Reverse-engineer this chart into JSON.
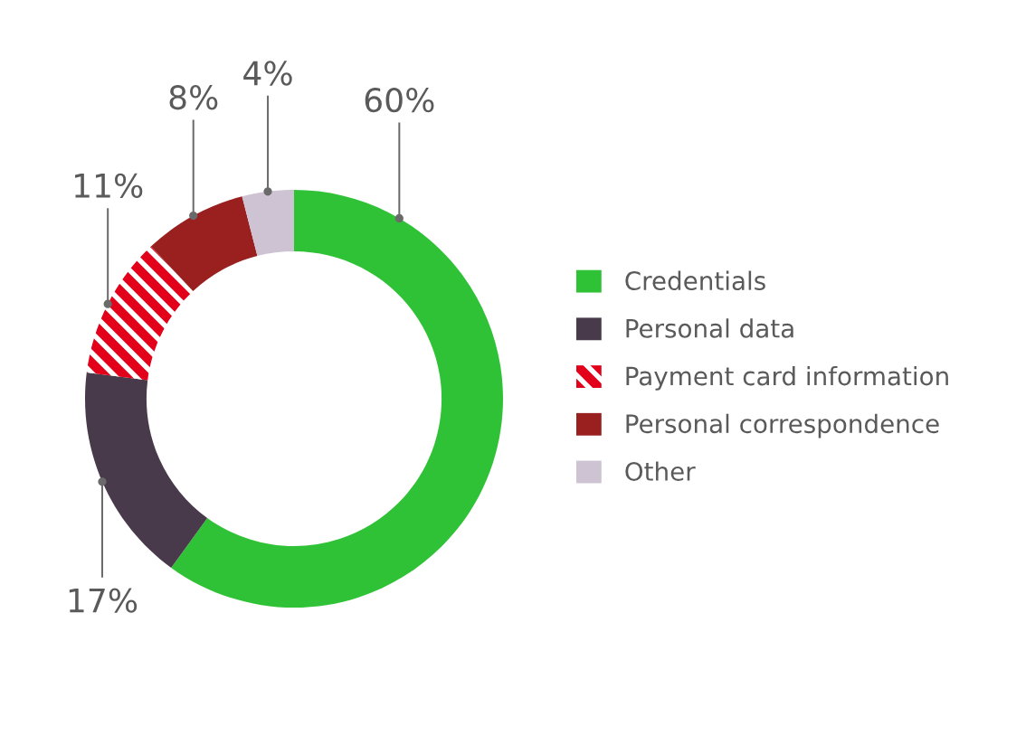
{
  "chart_data": {
    "type": "donut",
    "categories": [
      "Credentials",
      "Personal data",
      "Payment card information",
      "Personal correspondence",
      "Other"
    ],
    "values": [
      60,
      17,
      11,
      8,
      4
    ],
    "colors": [
      "#30c236",
      "#483a4b",
      "#e2001a",
      "#99201f",
      "#cdc3d3"
    ],
    "value_labels": [
      "60%",
      "17%",
      "11%",
      "8%",
      "4%"
    ],
    "legend": "right"
  }
}
